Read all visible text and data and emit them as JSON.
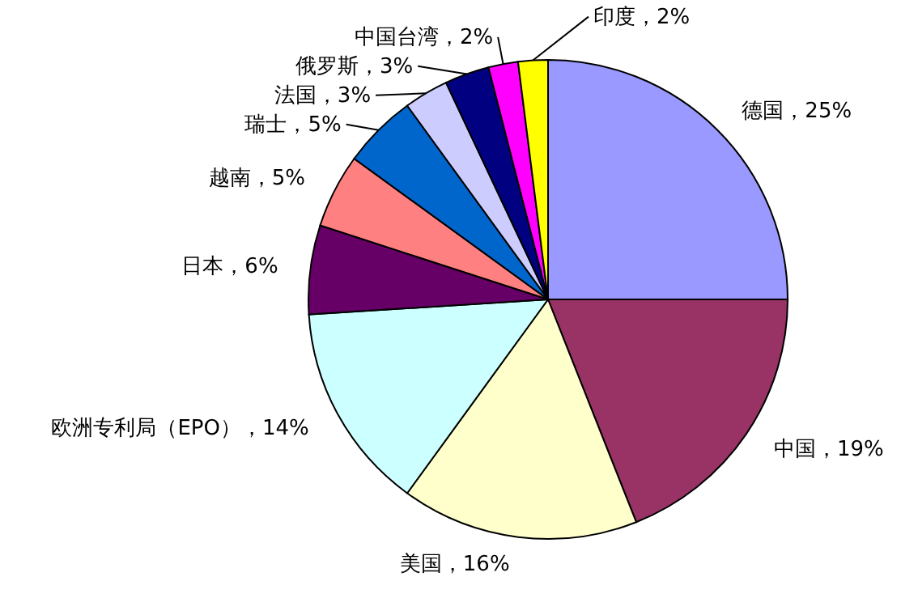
{
  "chart_data": {
    "type": "pie",
    "categories": [
      "德国",
      "中国",
      "美国",
      "欧洲专利局（EPO）",
      "日本",
      "越南",
      "瑞士",
      "法国",
      "俄罗斯",
      "中国台湾",
      "印度"
    ],
    "values": [
      25,
      19,
      16,
      14,
      6,
      5,
      5,
      3,
      3,
      2,
      2
    ],
    "value_labels": [
      "25%",
      "19%",
      "16%",
      "14%",
      "6%",
      "5%",
      "5%",
      "3%",
      "3%",
      "2%",
      "2%"
    ],
    "colors": [
      "#9999ff",
      "#993366",
      "#ffffcc",
      "#ccffff",
      "#660066",
      "#ff8080",
      "#0066cc",
      "#ccccff",
      "#000080",
      "#ff00ff",
      "#ffff00"
    ]
  }
}
